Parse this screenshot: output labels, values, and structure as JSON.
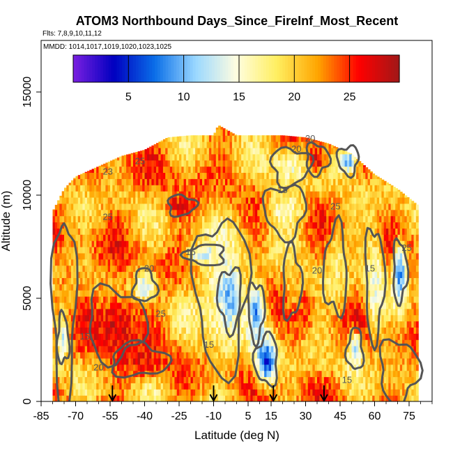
{
  "chart_data": {
    "type": "heatmap",
    "title": "ATOM3 Northbound Days_Since_FireInf_Most_Recent",
    "subtitle": "Flts: 7,8,9,10,11,12",
    "annotation": "MMDD: 1014,1017,1019,1020,1023,1025",
    "xlabel": "Latitude (deg N)",
    "ylabel": "Altitude (m)",
    "xlim": [
      -85,
      85
    ],
    "ylim": [
      0,
      17500
    ],
    "x_ticks": [
      -85,
      -70,
      -55,
      -40,
      -25,
      -10,
      5,
      15,
      30,
      45,
      60,
      75
    ],
    "x_tick_labels": [
      "-85",
      "-70",
      "-55",
      "-40",
      "-25",
      "-10",
      "5",
      "15",
      "30",
      "45",
      "60",
      "75"
    ],
    "y_ticks": [
      0,
      5000,
      10000,
      15000
    ],
    "y_tick_labels": [
      "0",
      "5000",
      "10000",
      "15000"
    ],
    "colorbar": {
      "min": 0,
      "max": 29.5,
      "ticks": [
        5,
        10,
        15,
        20,
        25
      ],
      "tick_labels": [
        "5",
        "10",
        "15",
        "20",
        "25"
      ],
      "colors": [
        "#7a1fe0",
        "#0000c0",
        "#0a6ee8",
        "#9ad8ff",
        "#fffde0",
        "#ffee60",
        "#ffa500",
        "#ff0000",
        "#a01818"
      ]
    },
    "coverage": {
      "lat_min": -80,
      "lat_max": 79,
      "top_altitude_profile": [
        {
          "lat": -80,
          "alt": 9200
        },
        {
          "lat": -75,
          "alt": 10300
        },
        {
          "lat": -70,
          "alt": 10900
        },
        {
          "lat": -60,
          "alt": 11400
        },
        {
          "lat": -50,
          "alt": 11900
        },
        {
          "lat": -40,
          "alt": 12200
        },
        {
          "lat": -30,
          "alt": 12800
        },
        {
          "lat": -20,
          "alt": 12900
        },
        {
          "lat": -10,
          "alt": 12900
        },
        {
          "lat": -8,
          "alt": 13400
        },
        {
          "lat": 0,
          "alt": 12900
        },
        {
          "lat": 10,
          "alt": 12900
        },
        {
          "lat": 20,
          "alt": 12900
        },
        {
          "lat": 30,
          "alt": 12800
        },
        {
          "lat": 40,
          "alt": 12500
        },
        {
          "lat": 50,
          "alt": 12000
        },
        {
          "lat": 60,
          "alt": 11000
        },
        {
          "lat": 70,
          "alt": 10300
        },
        {
          "lat": 79,
          "alt": 9500
        }
      ]
    },
    "regions": [
      {
        "lat_min": -80,
        "lat_max": -70,
        "alt_min": 0,
        "alt_max": 9000,
        "value": 22
      },
      {
        "lat_min": -78,
        "lat_max": -73,
        "alt_min": 1800,
        "alt_max": 4200,
        "value": 13
      },
      {
        "lat_min": -65,
        "lat_max": -40,
        "alt_min": 2000,
        "alt_max": 5500,
        "value": 27
      },
      {
        "lat_min": -55,
        "lat_max": -30,
        "alt_min": 1200,
        "alt_max": 2800,
        "value": 26
      },
      {
        "lat_min": -45,
        "lat_max": -35,
        "alt_min": 4800,
        "alt_max": 6400,
        "value": 13
      },
      {
        "lat_min": -30,
        "lat_max": -18,
        "alt_min": 9000,
        "alt_max": 10000,
        "value": 27
      },
      {
        "lat_min": -22,
        "lat_max": -5,
        "alt_min": 6600,
        "alt_max": 7600,
        "value": 11
      },
      {
        "lat_min": -18,
        "lat_max": 5,
        "alt_min": 1500,
        "alt_max": 9000,
        "value": 16
      },
      {
        "lat_min": -8,
        "lat_max": 2,
        "alt_min": 3500,
        "alt_max": 6500,
        "value": 10
      },
      {
        "lat_min": 5,
        "lat_max": 12,
        "alt_min": 3000,
        "alt_max": 5800,
        "value": 9
      },
      {
        "lat_min": 8,
        "lat_max": 18,
        "alt_min": 800,
        "alt_max": 3200,
        "value": 5
      },
      {
        "lat_min": 12,
        "lat_max": 30,
        "alt_min": 8000,
        "alt_max": 10500,
        "value": 16
      },
      {
        "lat_min": 15,
        "lat_max": 32,
        "alt_min": 10500,
        "alt_max": 12300,
        "value": 15
      },
      {
        "lat_min": 20,
        "lat_max": 28,
        "alt_min": 4000,
        "alt_max": 7500,
        "value": 20
      },
      {
        "lat_min": 30,
        "lat_max": 40,
        "alt_min": 11000,
        "alt_max": 12500,
        "value": 27
      },
      {
        "lat_min": 38,
        "lat_max": 48,
        "alt_min": 4200,
        "alt_max": 8500,
        "value": 18
      },
      {
        "lat_min": 44,
        "lat_max": 53,
        "alt_min": 11000,
        "alt_max": 12400,
        "value": 10
      },
      {
        "lat_min": 48,
        "lat_max": 55,
        "alt_min": 1500,
        "alt_max": 3500,
        "value": 12
      },
      {
        "lat_min": 56,
        "lat_max": 64,
        "alt_min": 3000,
        "alt_max": 8500,
        "value": 15
      },
      {
        "lat_min": 68,
        "lat_max": 74,
        "alt_min": 4800,
        "alt_max": 7800,
        "value": 8
      },
      {
        "lat_min": 62,
        "lat_max": 79,
        "alt_min": 0,
        "alt_max": 3000,
        "value": 21
      }
    ],
    "contour_labels": [
      {
        "lat": -66,
        "alt": 3000,
        "text": "15"
      },
      {
        "lat": -56,
        "alt": 11000,
        "text": "23"
      },
      {
        "lat": -42,
        "alt": 11500,
        "text": "25"
      },
      {
        "lat": -60,
        "alt": 1500,
        "text": "20"
      },
      {
        "lat": -33,
        "alt": 4100,
        "text": "25"
      },
      {
        "lat": -38,
        "alt": 6300,
        "text": "20"
      },
      {
        "lat": -56,
        "alt": 8800,
        "text": "25"
      },
      {
        "lat": -20,
        "alt": 7100,
        "text": "15"
      },
      {
        "lat": -12,
        "alt": 2600,
        "text": "15"
      },
      {
        "lat": 26,
        "alt": 12100,
        "text": "20"
      },
      {
        "lat": 20,
        "alt": 10100,
        "text": "15"
      },
      {
        "lat": 32,
        "alt": 12600,
        "text": "20"
      },
      {
        "lat": 43,
        "alt": 9300,
        "text": "25"
      },
      {
        "lat": 35,
        "alt": 6200,
        "text": "20"
      },
      {
        "lat": 48,
        "alt": 900,
        "text": "15"
      },
      {
        "lat": 58,
        "alt": 6300,
        "text": "15"
      },
      {
        "lat": 74,
        "alt": 7300,
        "text": "25"
      }
    ],
    "flight_markers_lat": [
      -54,
      -10,
      16,
      38
    ]
  }
}
